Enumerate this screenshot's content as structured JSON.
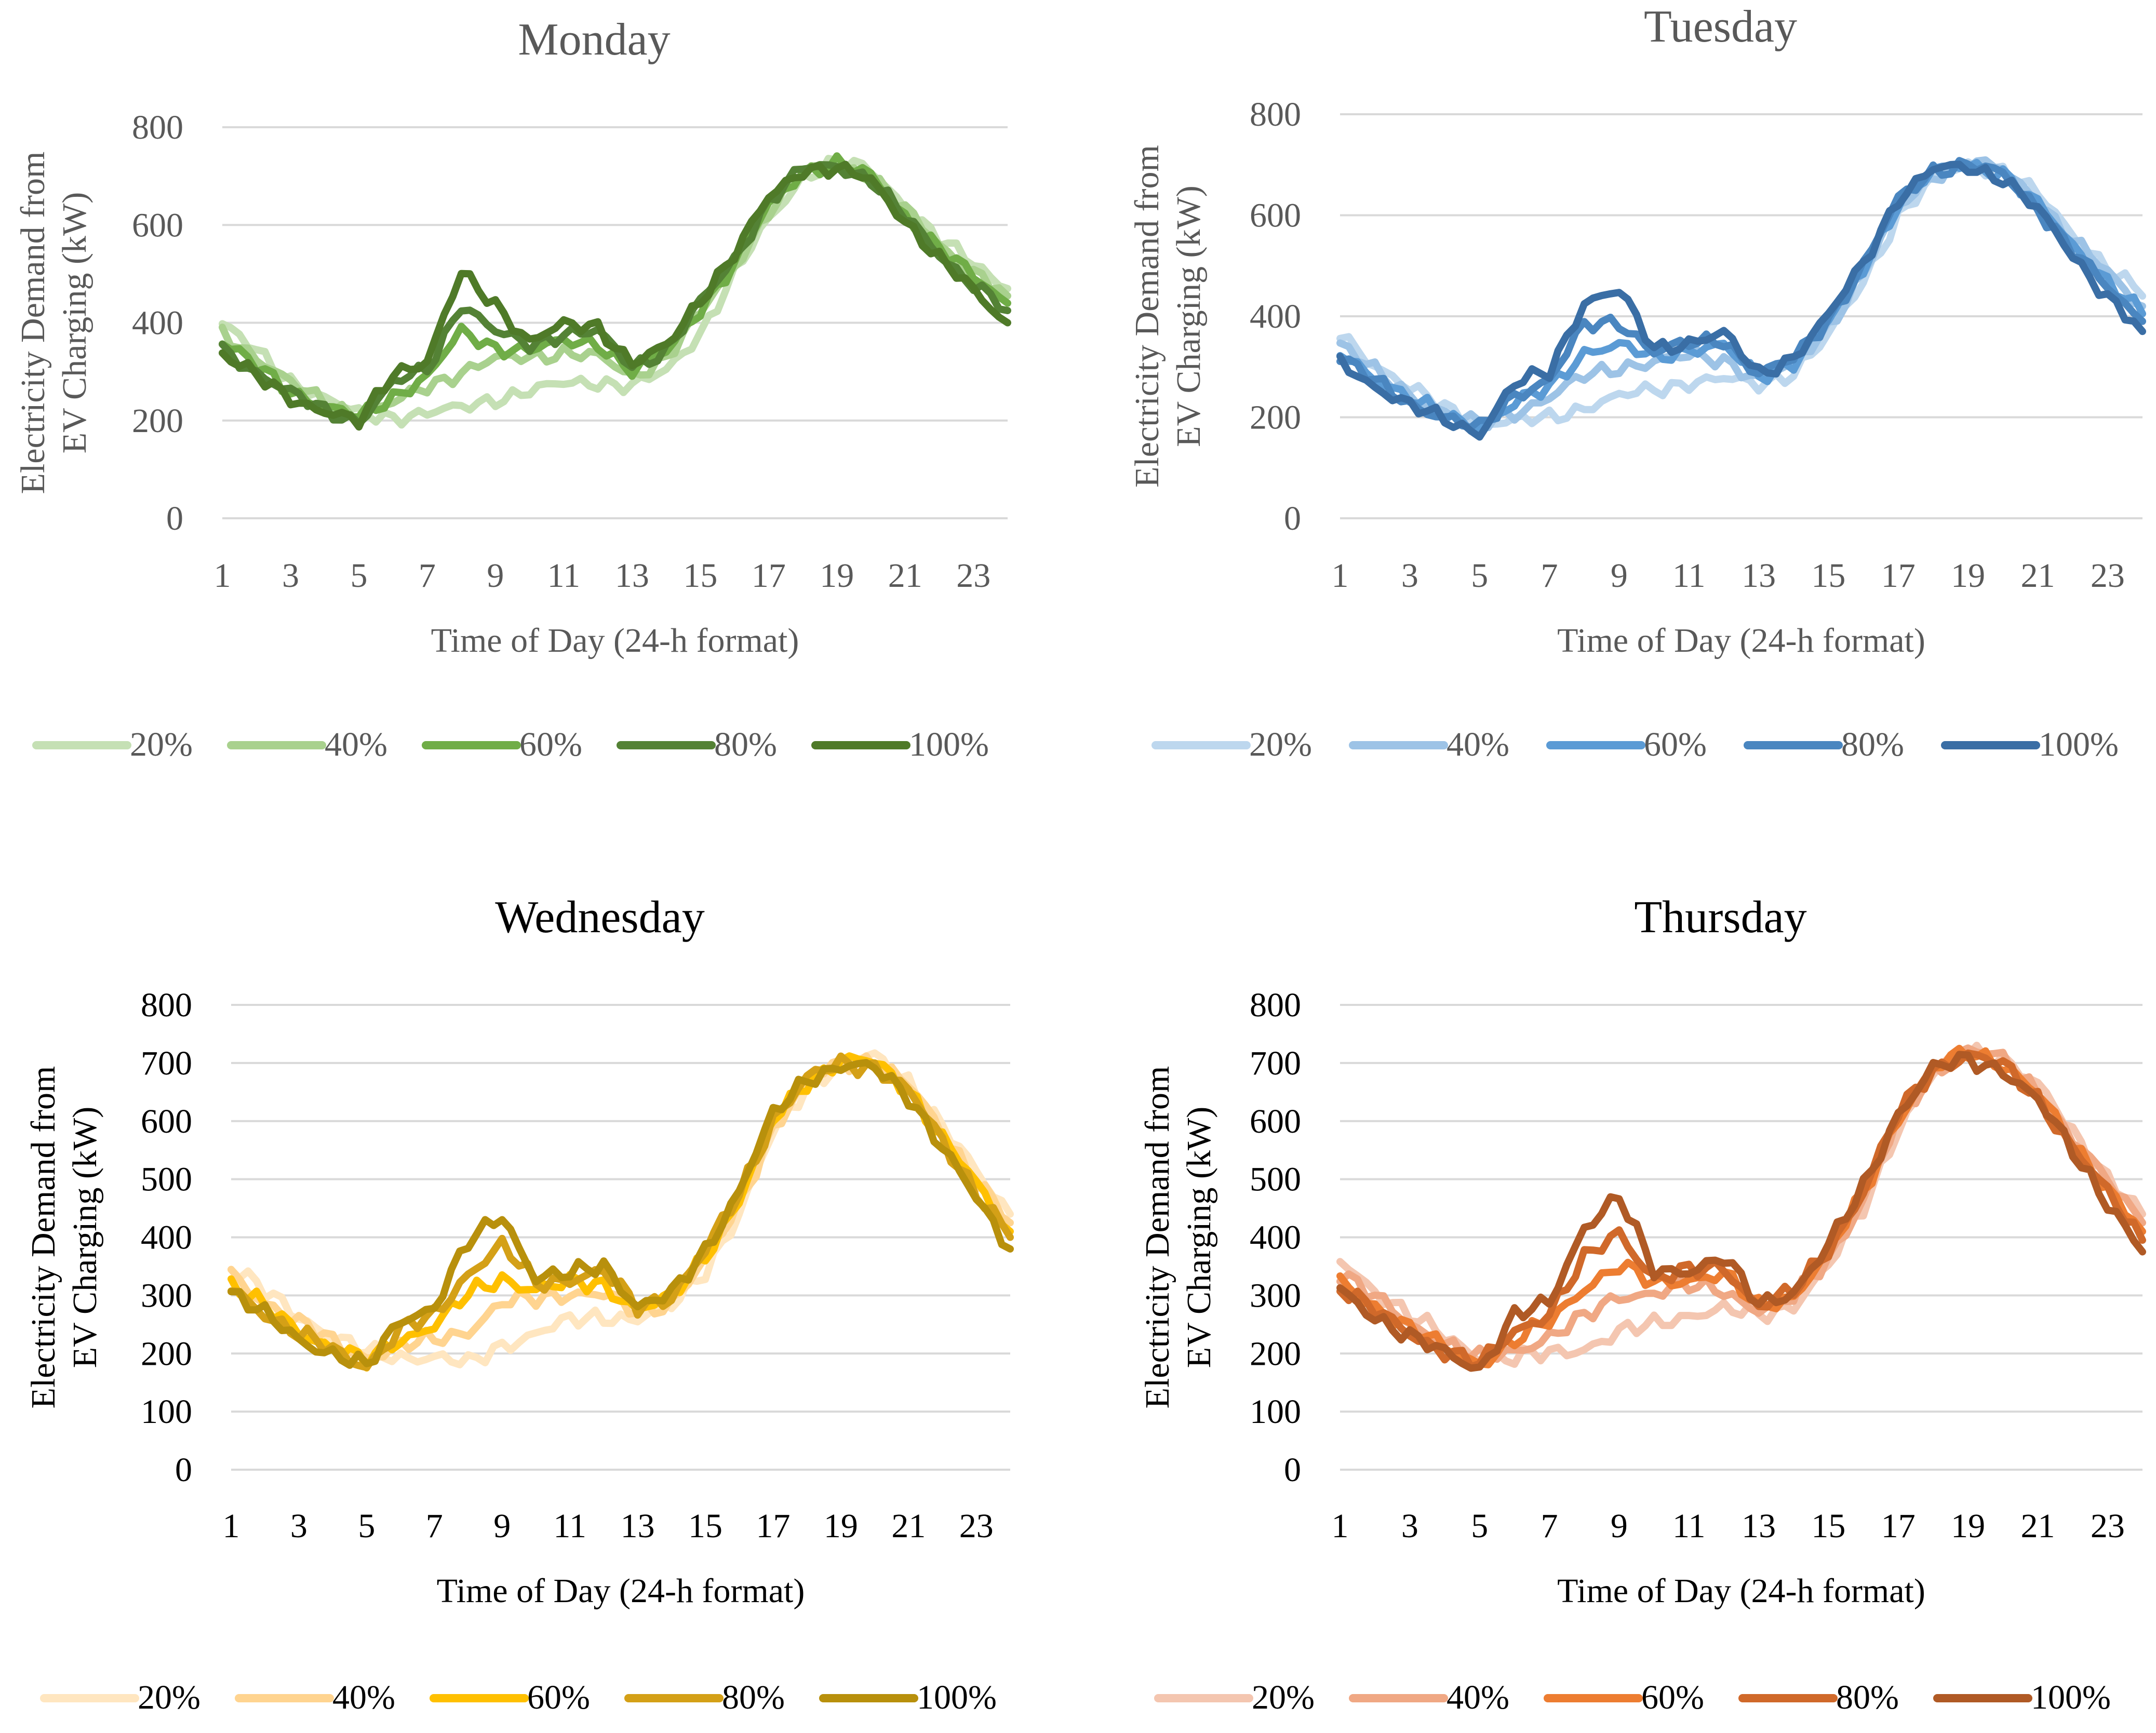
{
  "chart_data": [
    {
      "type": "line",
      "title": "Monday",
      "xlabel": "Time of Day (24-h format)",
      "ylabel_lines": [
        "Electricity Demand from",
        "EV Charging (kW)"
      ],
      "yticks": [
        0,
        200,
        400,
        600,
        800
      ],
      "ylim": [
        0,
        800
      ],
      "xticks": [
        1,
        3,
        5,
        7,
        9,
        11,
        13,
        15,
        17,
        19,
        21,
        23
      ],
      "xlim": [
        1,
        24
      ],
      "legend_position": "bottom",
      "colors": [
        "#c5e0b4",
        "#a9d18e",
        "#70ad47",
        "#548235",
        "#4f7a28"
      ],
      "series": [
        {
          "name": "20%",
          "values": [
            398,
            340,
            282,
            245,
            212,
            208,
            215,
            225,
            245,
            260,
            275,
            280,
            270,
            300,
            380,
            500,
            610,
            700,
            730,
            710,
            640,
            570,
            520,
            470
          ]
        },
        {
          "name": "40%",
          "values": [
            380,
            330,
            275,
            238,
            210,
            235,
            270,
            300,
            325,
            330,
            340,
            330,
            290,
            330,
            420,
            515,
            630,
            705,
            725,
            700,
            630,
            560,
            505,
            455
          ]
        },
        {
          "name": "60%",
          "values": [
            360,
            310,
            262,
            228,
            205,
            250,
            290,
            380,
            350,
            345,
            360,
            360,
            300,
            340,
            430,
            520,
            640,
            710,
            725,
            700,
            620,
            550,
            495,
            440
          ]
        },
        {
          "name": "80%",
          "values": [
            345,
            300,
            255,
            220,
            200,
            275,
            305,
            440,
            380,
            355,
            380,
            380,
            310,
            345,
            440,
            530,
            650,
            715,
            720,
            695,
            615,
            540,
            480,
            425
          ]
        },
        {
          "name": "100%",
          "values": [
            335,
            290,
            248,
            218,
            195,
            300,
            320,
            500,
            440,
            360,
            395,
            395,
            315,
            350,
            450,
            540,
            655,
            715,
            715,
            690,
            610,
            530,
            465,
            400
          ]
        }
      ]
    },
    {
      "type": "line",
      "title": "Tuesday",
      "xlabel": "Time of Day (24-h format)",
      "ylabel_lines": [
        "Electricity Demand from",
        "EV Charging (kW)"
      ],
      "yticks": [
        0,
        200,
        400,
        600,
        800
      ],
      "ylim": [
        0,
        800
      ],
      "xticks": [
        1,
        3,
        5,
        7,
        9,
        11,
        13,
        15,
        17,
        19,
        21,
        23
      ],
      "xlim": [
        1,
        24
      ],
      "legend_position": "bottom",
      "colors": [
        "#bdd7ee",
        "#9dc3e6",
        "#5b9bd5",
        "#4a86c0",
        "#3a6ea5"
      ],
      "series": [
        {
          "name": "20%",
          "values": [
            365,
            305,
            255,
            220,
            190,
            190,
            200,
            220,
            240,
            255,
            270,
            275,
            265,
            290,
            360,
            470,
            600,
            670,
            700,
            690,
            640,
            560,
            500,
            440
          ]
        },
        {
          "name": "40%",
          "values": [
            345,
            290,
            245,
            210,
            185,
            210,
            240,
            280,
            300,
            310,
            320,
            315,
            275,
            305,
            380,
            485,
            615,
            680,
            705,
            690,
            630,
            550,
            485,
            420
          ]
        },
        {
          "name": "60%",
          "values": [
            330,
            280,
            235,
            205,
            180,
            225,
            260,
            330,
            340,
            320,
            335,
            340,
            280,
            310,
            390,
            495,
            625,
            685,
            700,
            685,
            620,
            540,
            470,
            405
          ]
        },
        {
          "name": "80%",
          "values": [
            320,
            270,
            228,
            200,
            175,
            245,
            275,
            380,
            390,
            330,
            345,
            355,
            285,
            315,
            395,
            500,
            630,
            690,
            700,
            680,
            615,
            530,
            455,
            390
          ]
        },
        {
          "name": "100%",
          "values": [
            310,
            262,
            222,
            195,
            170,
            265,
            290,
            430,
            450,
            335,
            350,
            365,
            285,
            320,
            400,
            505,
            635,
            690,
            695,
            675,
            610,
            520,
            440,
            370
          ]
        }
      ]
    },
    {
      "type": "line",
      "title": "Wednesday",
      "xlabel": "Time of Day (24-h format)",
      "ylabel_lines": [
        "Electricity Demand from",
        "EV Charging (kW)"
      ],
      "yticks": [
        0,
        100,
        200,
        300,
        400,
        500,
        600,
        700,
        800
      ],
      "ylim": [
        0,
        800
      ],
      "xticks": [
        1,
        3,
        5,
        7,
        9,
        11,
        13,
        15,
        17,
        19,
        21,
        23
      ],
      "xlim": [
        1,
        24
      ],
      "legend_position": "bottom",
      "colors": [
        "#ffe6c0",
        "#ffd490",
        "#ffc000",
        "#d4a017",
        "#b8900c"
      ],
      "series": [
        {
          "name": "20%",
          "values": [
            350,
            305,
            265,
            230,
            200,
            195,
            195,
            180,
            215,
            235,
            255,
            265,
            260,
            280,
            345,
            440,
            580,
            660,
            700,
            710,
            670,
            590,
            510,
            440
          ]
        },
        {
          "name": "40%",
          "values": [
            335,
            290,
            252,
            220,
            195,
            210,
            225,
            240,
            285,
            295,
            305,
            300,
            270,
            290,
            360,
            455,
            590,
            665,
            700,
            705,
            660,
            580,
            500,
            425
          ]
        },
        {
          "name": "60%",
          "values": [
            320,
            278,
            240,
            210,
            185,
            225,
            250,
            300,
            330,
            310,
            320,
            320,
            275,
            295,
            370,
            465,
            600,
            670,
            705,
            700,
            655,
            570,
            490,
            410
          ]
        },
        {
          "name": "80%",
          "values": [
            312,
            270,
            232,
            205,
            180,
            240,
            265,
            340,
            385,
            320,
            330,
            340,
            280,
            300,
            375,
            475,
            605,
            672,
            700,
            695,
            650,
            565,
            480,
            400
          ]
        },
        {
          "name": "100%",
          "values": [
            305,
            265,
            225,
            200,
            175,
            260,
            280,
            390,
            440,
            330,
            335,
            355,
            280,
            300,
            380,
            480,
            610,
            675,
            695,
            690,
            645,
            555,
            465,
            380
          ]
        }
      ]
    },
    {
      "type": "line",
      "title": "Thursday",
      "xlabel": "Time of Day (24-h format)",
      "ylabel_lines": [
        "Electricity Demand from",
        "EV Charging (kW)"
      ],
      "yticks": [
        0,
        100,
        200,
        300,
        400,
        500,
        600,
        700,
        800
      ],
      "ylim": [
        0,
        800
      ],
      "xticks": [
        1,
        3,
        5,
        7,
        9,
        11,
        13,
        15,
        17,
        19,
        21,
        23
      ],
      "xlim": [
        1,
        24
      ],
      "legend_position": "bottom",
      "colors": [
        "#f4c6b0",
        "#f0a884",
        "#ed7d31",
        "#d0692a",
        "#b05a25"
      ],
      "series": [
        {
          "name": "20%",
          "values": [
            360,
            310,
            265,
            228,
            195,
            190,
            200,
            210,
            235,
            250,
            268,
            275,
            265,
            285,
            350,
            450,
            590,
            680,
            720,
            710,
            660,
            580,
            505,
            440
          ]
        },
        {
          "name": "40%",
          "values": [
            340,
            295,
            252,
            218,
            190,
            205,
            230,
            260,
            300,
            305,
            315,
            310,
            275,
            295,
            365,
            465,
            600,
            685,
            725,
            705,
            650,
            570,
            495,
            425
          ]
        },
        {
          "name": "60%",
          "values": [
            325,
            282,
            242,
            210,
            185,
            220,
            255,
            315,
            350,
            320,
            330,
            335,
            280,
            300,
            375,
            475,
            608,
            688,
            720,
            700,
            645,
            560,
            485,
            410
          ]
        },
        {
          "name": "80%",
          "values": [
            315,
            272,
            235,
            205,
            180,
            240,
            270,
            360,
            410,
            330,
            340,
            350,
            282,
            305,
            380,
            480,
            612,
            690,
            715,
            695,
            640,
            555,
            475,
            395
          ]
        },
        {
          "name": "100%",
          "values": [
            308,
            265,
            228,
            200,
            175,
            265,
            285,
            420,
            470,
            340,
            345,
            365,
            283,
            308,
            385,
            485,
            615,
            690,
            705,
            690,
            635,
            548,
            462,
            375
          ]
        }
      ]
    }
  ]
}
